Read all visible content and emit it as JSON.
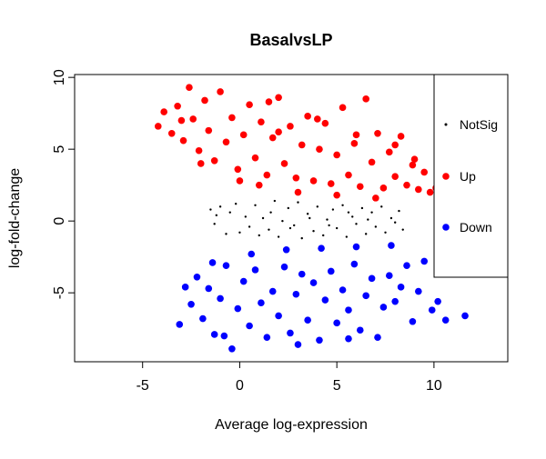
{
  "chart_data": {
    "type": "scatter",
    "title": "BasalvsLP",
    "xlabel": "Average log-expression",
    "ylabel": "log-fold-change",
    "xlim": [
      -8.5,
      13.8
    ],
    "ylim": [
      -9.8,
      10.2
    ],
    "x_ticks": [
      -5,
      0,
      5,
      10
    ],
    "y_ticks": [
      -5,
      0,
      5,
      10
    ],
    "grid": false,
    "legend": {
      "position": "right",
      "entries": [
        {
          "label": "NotSig",
          "color": "#000000",
          "marker": "small-dot"
        },
        {
          "label": "Up",
          "color": "#ff0000",
          "marker": "filled-circle"
        },
        {
          "label": "Down",
          "color": "#0000ff",
          "marker": "filled-circle"
        }
      ]
    },
    "series": [
      {
        "name": "NotSig",
        "color": "#000000",
        "points": [
          [
            -1.5,
            0.8
          ],
          [
            -1.2,
            0.4
          ],
          [
            -1.3,
            -0.2
          ],
          [
            -1.0,
            1.0
          ],
          [
            -0.7,
            -0.9
          ],
          [
            -0.5,
            0.6
          ],
          [
            -0.2,
            1.2
          ],
          [
            0.0,
            -0.8
          ],
          [
            0.3,
            0.3
          ],
          [
            0.5,
            -0.4
          ],
          [
            0.8,
            1.1
          ],
          [
            1.0,
            -1.0
          ],
          [
            1.2,
            0.2
          ],
          [
            1.5,
            -0.6
          ],
          [
            1.8,
            1.4
          ],
          [
            2.0,
            -1.1
          ],
          [
            2.2,
            0.0
          ],
          [
            2.5,
            0.9
          ],
          [
            2.8,
            -0.3
          ],
          [
            3.0,
            1.3
          ],
          [
            3.2,
            -1.2
          ],
          [
            3.5,
            0.5
          ],
          [
            3.8,
            -0.7
          ],
          [
            4.0,
            1.0
          ],
          [
            4.3,
            -1.0
          ],
          [
            4.5,
            0.1
          ],
          [
            4.8,
            0.8
          ],
          [
            5.0,
            -0.5
          ],
          [
            5.3,
            1.1
          ],
          [
            5.5,
            -1.1
          ],
          [
            5.8,
            0.3
          ],
          [
            6.0,
            -0.2
          ],
          [
            6.3,
            0.9
          ],
          [
            6.5,
            -0.9
          ],
          [
            6.8,
            0.6
          ],
          [
            7.0,
            -0.4
          ],
          [
            7.3,
            1.0
          ],
          [
            7.5,
            -0.8
          ],
          [
            7.8,
            0.2
          ],
          [
            8.0,
            -0.1
          ],
          [
            8.2,
            0.7
          ],
          [
            8.4,
            -0.6
          ],
          [
            2.6,
            -0.5
          ],
          [
            3.6,
            0.2
          ],
          [
            1.6,
            0.6
          ],
          [
            4.6,
            -0.3
          ],
          [
            5.6,
            0.6
          ],
          [
            6.6,
            0.1
          ]
        ]
      },
      {
        "name": "Up",
        "color": "#ff0000",
        "points": [
          [
            -4.2,
            6.6
          ],
          [
            -3.9,
            7.6
          ],
          [
            -3.5,
            6.1
          ],
          [
            -3.2,
            8.0
          ],
          [
            -2.9,
            5.6
          ],
          [
            -2.6,
            9.3
          ],
          [
            -2.4,
            7.1
          ],
          [
            -2.1,
            4.9
          ],
          [
            -1.8,
            8.4
          ],
          [
            -1.6,
            6.3
          ],
          [
            -1.3,
            4.2
          ],
          [
            -1.0,
            9.0
          ],
          [
            -0.7,
            5.5
          ],
          [
            -0.4,
            7.2
          ],
          [
            -0.1,
            3.6
          ],
          [
            0.2,
            6.0
          ],
          [
            0.5,
            8.1
          ],
          [
            0.8,
            4.4
          ],
          [
            1.1,
            6.9
          ],
          [
            1.4,
            3.2
          ],
          [
            1.7,
            5.8
          ],
          [
            2.0,
            8.6
          ],
          [
            2.3,
            4.0
          ],
          [
            2.6,
            6.6
          ],
          [
            2.9,
            3.0
          ],
          [
            3.2,
            5.3
          ],
          [
            3.5,
            7.3
          ],
          [
            3.8,
            2.8
          ],
          [
            4.1,
            5.0
          ],
          [
            4.4,
            6.8
          ],
          [
            4.7,
            2.6
          ],
          [
            5.0,
            4.6
          ],
          [
            5.3,
            7.9
          ],
          [
            5.6,
            3.2
          ],
          [
            5.9,
            5.4
          ],
          [
            6.2,
            2.4
          ],
          [
            6.5,
            8.5
          ],
          [
            6.8,
            4.1
          ],
          [
            7.1,
            6.1
          ],
          [
            7.4,
            2.3
          ],
          [
            7.7,
            4.8
          ],
          [
            8.0,
            3.1
          ],
          [
            8.3,
            5.9
          ],
          [
            8.6,
            2.5
          ],
          [
            8.9,
            3.9
          ],
          [
            9.2,
            2.2
          ],
          [
            9.5,
            3.4
          ],
          [
            9.8,
            2.0
          ],
          [
            10.1,
            2.3
          ],
          [
            10.4,
            1.9
          ],
          [
            10.8,
            3.1
          ],
          [
            1.0,
            2.5
          ],
          [
            3.0,
            2.0
          ],
          [
            5.0,
            1.8
          ],
          [
            7.0,
            1.6
          ],
          [
            0.0,
            2.8
          ],
          [
            -2.0,
            4.0
          ],
          [
            2.0,
            6.2
          ],
          [
            4.0,
            7.1
          ],
          [
            6.0,
            6.0
          ],
          [
            8.0,
            5.3
          ],
          [
            9.0,
            4.3
          ],
          [
            -3.0,
            7.0
          ],
          [
            1.5,
            8.3
          ]
        ]
      },
      {
        "name": "Down",
        "color": "#0000ff",
        "points": [
          [
            -3.1,
            -7.2
          ],
          [
            -2.8,
            -4.6
          ],
          [
            -2.5,
            -5.8
          ],
          [
            -2.2,
            -3.9
          ],
          [
            -1.9,
            -6.8
          ],
          [
            -1.6,
            -4.7
          ],
          [
            -1.3,
            -7.9
          ],
          [
            -1.0,
            -5.4
          ],
          [
            -0.7,
            -3.1
          ],
          [
            -0.4,
            -8.9
          ],
          [
            -0.1,
            -6.1
          ],
          [
            0.2,
            -4.2
          ],
          [
            0.5,
            -7.3
          ],
          [
            0.8,
            -3.4
          ],
          [
            1.1,
            -5.7
          ],
          [
            1.4,
            -8.1
          ],
          [
            1.7,
            -4.9
          ],
          [
            2.0,
            -6.6
          ],
          [
            2.3,
            -3.2
          ],
          [
            2.6,
            -7.8
          ],
          [
            2.9,
            -5.1
          ],
          [
            3.2,
            -3.7
          ],
          [
            3.5,
            -6.9
          ],
          [
            3.8,
            -4.3
          ],
          [
            4.1,
            -8.3
          ],
          [
            4.4,
            -5.5
          ],
          [
            4.7,
            -3.5
          ],
          [
            5.0,
            -7.1
          ],
          [
            5.3,
            -4.8
          ],
          [
            5.6,
            -6.2
          ],
          [
            5.9,
            -3.0
          ],
          [
            6.2,
            -7.6
          ],
          [
            6.5,
            -5.2
          ],
          [
            6.8,
            -4.0
          ],
          [
            7.1,
            -8.1
          ],
          [
            7.4,
            -6.0
          ],
          [
            7.7,
            -3.8
          ],
          [
            8.0,
            -5.6
          ],
          [
            8.3,
            -4.6
          ],
          [
            8.6,
            -3.1
          ],
          [
            8.9,
            -7.0
          ],
          [
            9.2,
            -4.9
          ],
          [
            9.5,
            -2.8
          ],
          [
            9.9,
            -6.2
          ],
          [
            10.2,
            -5.6
          ],
          [
            10.6,
            -6.9
          ],
          [
            11.6,
            -6.6
          ],
          [
            0.6,
            -2.3
          ],
          [
            2.4,
            -2.0
          ],
          [
            4.2,
            -1.9
          ],
          [
            6.0,
            -1.8
          ],
          [
            7.8,
            -1.7
          ],
          [
            -1.4,
            -2.9
          ],
          [
            3.0,
            -8.6
          ],
          [
            5.6,
            -8.2
          ],
          [
            -0.8,
            -8.0
          ]
        ]
      }
    ]
  }
}
